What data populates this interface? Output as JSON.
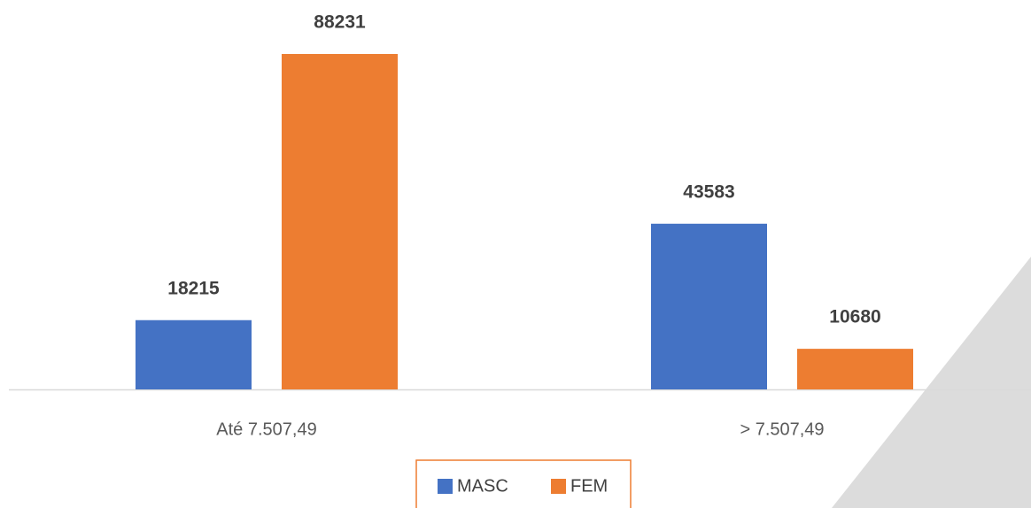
{
  "chart_data": {
    "type": "bar",
    "categories": [
      "Até 7.507,49",
      "> 7.507,49"
    ],
    "series": [
      {
        "name": "MASC",
        "color": "#4472c4",
        "values": [
          18215,
          43583
        ]
      },
      {
        "name": "FEM",
        "color": "#ed7d31",
        "values": [
          88231,
          10680
        ]
      }
    ]
  }
}
